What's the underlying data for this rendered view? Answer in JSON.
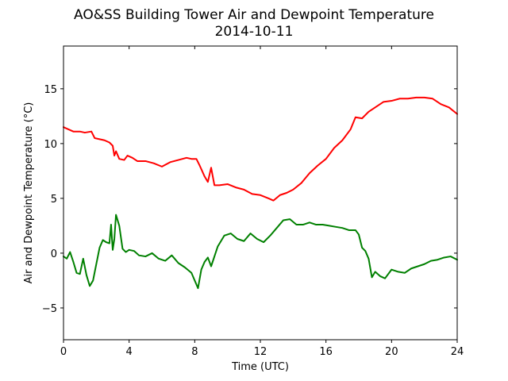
{
  "chart_data": {
    "type": "line",
    "title": "AO&SS Building Tower Air and Dewpoint Temperature",
    "subtitle": "2014-10-11",
    "xlabel": "Time (UTC)",
    "ylabel": "Air and Dewpoint Temperature (°C)",
    "xlim": [
      0,
      24
    ],
    "ylim": [
      -7.9,
      18.9
    ],
    "xticks": [
      0,
      4,
      8,
      12,
      16,
      20,
      24
    ],
    "yticks": [
      -5,
      0,
      5,
      10,
      15
    ],
    "grid": false,
    "legend": "none",
    "series": [
      {
        "color": "#ff0000",
        "x": [
          0,
          0.3,
          0.6,
          1.0,
          1.3,
          1.7,
          1.9,
          2.2,
          2.5,
          2.8,
          3.0,
          3.1,
          3.2,
          3.4,
          3.7,
          3.9,
          4.2,
          4.5,
          5.0,
          5.5,
          6.0,
          6.5,
          7.0,
          7.5,
          7.8,
          8.1,
          8.3,
          8.6,
          8.8,
          9.0,
          9.2,
          9.5,
          10.0,
          10.5,
          11.0,
          11.5,
          12.0,
          12.5,
          12.8,
          13.2,
          13.6,
          14.0,
          14.5,
          15.0,
          15.5,
          16.0,
          16.5,
          17.0,
          17.5,
          17.8,
          18.2,
          18.6,
          19.0,
          19.5,
          20.0,
          20.5,
          21.0,
          21.5,
          22.0,
          22.5,
          23.0,
          23.5,
          24.0
        ],
        "values": [
          11.5,
          11.3,
          11.1,
          11.1,
          11.0,
          11.1,
          10.5,
          10.4,
          10.3,
          10.1,
          9.8,
          8.9,
          9.3,
          8.6,
          8.5,
          8.9,
          8.7,
          8.4,
          8.4,
          8.2,
          7.9,
          8.3,
          8.5,
          8.7,
          8.6,
          8.6,
          8.0,
          7.0,
          6.5,
          7.8,
          6.2,
          6.2,
          6.3,
          6.0,
          5.8,
          5.4,
          5.3,
          5.0,
          4.8,
          5.3,
          5.5,
          5.8,
          6.4,
          7.3,
          8.0,
          8.6,
          9.6,
          10.3,
          11.3,
          12.4,
          12.3,
          12.9,
          13.3,
          13.8,
          13.9,
          14.1,
          14.1,
          14.2,
          14.2,
          14.1,
          13.6,
          13.3,
          12.7
        ]
      },
      {
        "color": "#008000",
        "x": [
          0,
          0.2,
          0.4,
          0.6,
          0.8,
          1.0,
          1.2,
          1.4,
          1.6,
          1.8,
          2.0,
          2.2,
          2.4,
          2.6,
          2.8,
          2.9,
          3.0,
          3.1,
          3.2,
          3.4,
          3.6,
          3.8,
          4.0,
          4.3,
          4.6,
          5.0,
          5.4,
          5.8,
          6.2,
          6.6,
          7.0,
          7.4,
          7.8,
          8.2,
          8.4,
          8.6,
          8.8,
          9.0,
          9.4,
          9.8,
          10.2,
          10.6,
          11.0,
          11.4,
          11.8,
          12.2,
          12.6,
          13.0,
          13.4,
          13.8,
          14.2,
          14.6,
          15.0,
          15.4,
          15.8,
          16.2,
          16.6,
          17.0,
          17.4,
          17.8,
          18.0,
          18.2,
          18.4,
          18.6,
          18.8,
          19.0,
          19.3,
          19.6,
          20.0,
          20.4,
          20.8,
          21.2,
          21.6,
          22.0,
          22.4,
          22.8,
          23.2,
          23.6,
          24.0
        ],
        "values": [
          -0.3,
          -0.5,
          0.1,
          -0.8,
          -1.8,
          -1.9,
          -0.5,
          -2.0,
          -3.0,
          -2.5,
          -1.0,
          0.5,
          1.2,
          1.0,
          0.9,
          2.6,
          0.3,
          1.3,
          3.5,
          2.5,
          0.4,
          0.1,
          0.3,
          0.2,
          -0.2,
          -0.3,
          0.0,
          -0.5,
          -0.7,
          -0.2,
          -0.9,
          -1.3,
          -1.8,
          -3.2,
          -1.5,
          -0.8,
          -0.4,
          -1.2,
          0.6,
          1.6,
          1.8,
          1.3,
          1.1,
          1.8,
          1.3,
          1.0,
          1.6,
          2.3,
          3.0,
          3.1,
          2.6,
          2.6,
          2.8,
          2.6,
          2.6,
          2.5,
          2.4,
          2.3,
          2.1,
          2.1,
          1.7,
          0.5,
          0.2,
          -0.5,
          -2.2,
          -1.7,
          -2.1,
          -2.3,
          -1.5,
          -1.7,
          -1.8,
          -1.4,
          -1.2,
          -1.0,
          -0.7,
          -0.6,
          -0.4,
          -0.3,
          -0.6
        ]
      }
    ]
  }
}
